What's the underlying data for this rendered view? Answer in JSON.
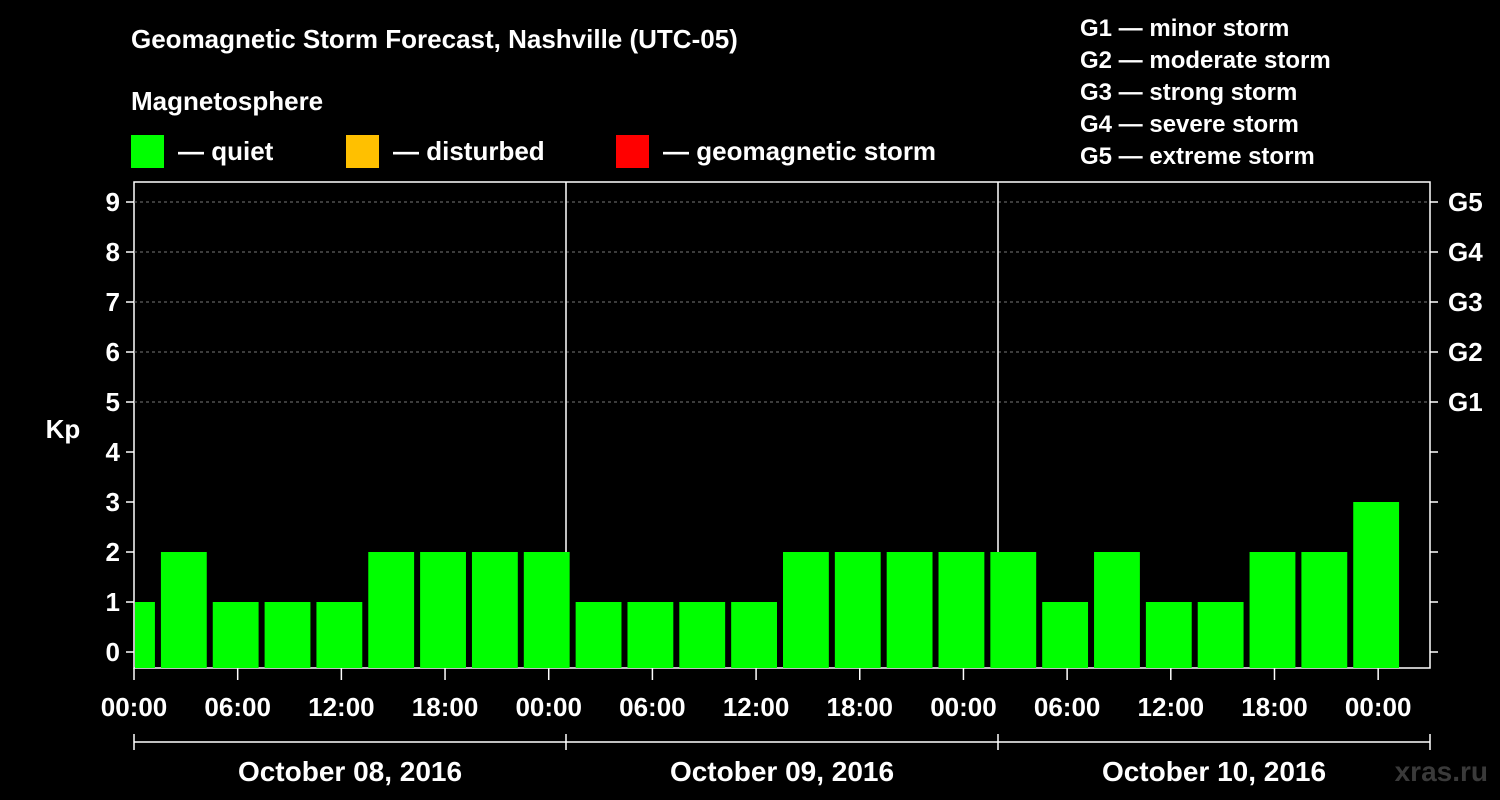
{
  "header": {
    "title": "Geomagnetic Storm Forecast, Nashville (UTC-05)",
    "subtitle": "Magnetosphere"
  },
  "legend": [
    {
      "label": "— quiet",
      "color": "#00ff00"
    },
    {
      "label": "— disturbed",
      "color": "#ffc000"
    },
    {
      "label": "— geomagnetic storm",
      "color": "#ff0000"
    }
  ],
  "storm_levels": [
    {
      "label": "G1 — minor storm"
    },
    {
      "label": "G2 — moderate storm"
    },
    {
      "label": "G3 — strong storm"
    },
    {
      "label": "G4 — severe storm"
    },
    {
      "label": "G5 — extreme storm"
    }
  ],
  "watermark": "xras.ru",
  "chart_data": {
    "type": "bar",
    "ylabel": "Kp",
    "ylim": [
      0,
      9
    ],
    "y_ticks": [
      "0",
      "1",
      "2",
      "3",
      "4",
      "5",
      "6",
      "7",
      "8",
      "9"
    ],
    "right_ticks": [
      {
        "kp": 5,
        "label": "G1"
      },
      {
        "kp": 6,
        "label": "G2"
      },
      {
        "kp": 7,
        "label": "G3"
      },
      {
        "kp": 8,
        "label": "G4"
      },
      {
        "kp": 9,
        "label": "G5"
      }
    ],
    "x_tick_labels": [
      "00:00",
      "06:00",
      "12:00",
      "18:00",
      "00:00",
      "06:00",
      "12:00",
      "18:00",
      "00:00",
      "06:00",
      "12:00",
      "18:00",
      "00:00"
    ],
    "days": [
      "October 08, 2016",
      "October 09, 2016",
      "October 10, 2016"
    ],
    "series": [
      {
        "values": [
          1,
          2,
          1,
          1,
          1,
          2,
          2,
          2,
          2,
          1,
          1,
          1,
          1,
          2,
          2,
          2,
          2,
          2,
          1,
          2,
          1,
          1,
          2,
          2,
          3
        ],
        "colors": [
          "#00ff00"
        ]
      }
    ],
    "grid": true,
    "bar_color": "#00ff00"
  }
}
